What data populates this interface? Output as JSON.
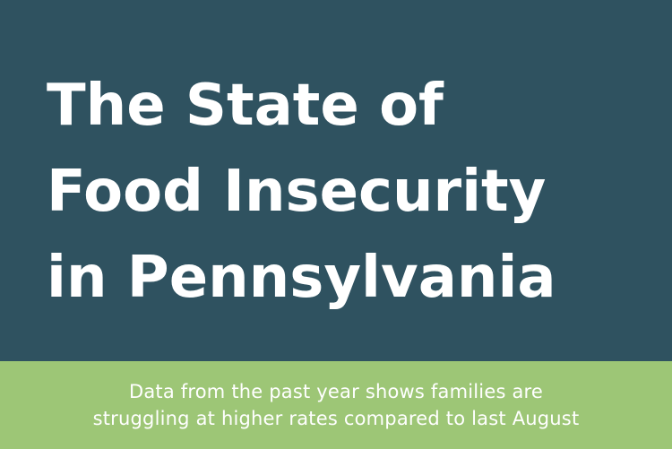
{
  "hero": {
    "title_lines": [
      "The State of",
      "Food Insecurity",
      "in Pennsylvania"
    ],
    "background_color": "#2f5260"
  },
  "band": {
    "subtitle_lines": [
      "Data from the past year shows families are",
      "struggling at higher rates compared to last August"
    ],
    "background_color": "#9dc676"
  }
}
